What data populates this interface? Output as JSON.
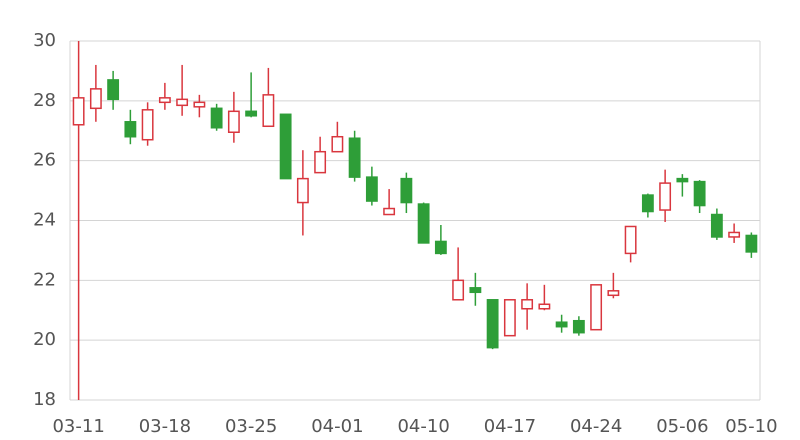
{
  "chart_data": {
    "type": "candlestick",
    "categories": [
      "03-11",
      null,
      null,
      null,
      null,
      "03-18",
      null,
      null,
      null,
      null,
      "03-25",
      null,
      null,
      null,
      null,
      "04-01",
      null,
      null,
      null,
      null,
      "04-10",
      null,
      null,
      null,
      null,
      "04-17",
      null,
      null,
      null,
      null,
      "04-24",
      null,
      null,
      null,
      null,
      "05-06",
      null,
      null,
      null,
      "05-10"
    ],
    "open": [
      27.2,
      27.75,
      28.7,
      27.3,
      26.7,
      27.95,
      27.85,
      27.8,
      27.75,
      26.95,
      27.65,
      27.15,
      27.55,
      24.6,
      25.6,
      26.3,
      26.75,
      25.45,
      24.2,
      25.4,
      24.55,
      23.3,
      21.35,
      21.75,
      21.35,
      20.15,
      21.05,
      21.05,
      20.6,
      20.65,
      20.35,
      21.5,
      22.9,
      24.85,
      24.35,
      25.4,
      25.3,
      24.2,
      23.45,
      23.5
    ],
    "high": [
      30,
      29.2,
      29.0,
      27.7,
      27.95,
      28.6,
      29.2,
      28.2,
      27.9,
      28.3,
      28.95,
      29.1,
      27.55,
      26.35,
      26.8,
      27.3,
      27.0,
      25.8,
      25.05,
      25.6,
      24.6,
      23.85,
      23.1,
      22.25,
      21.35,
      21.35,
      21.9,
      21.85,
      20.85,
      20.8,
      21.85,
      22.25,
      23.8,
      24.9,
      25.7,
      25.55,
      25.35,
      24.4,
      23.9,
      23.6
    ],
    "low": [
      18,
      27.3,
      27.7,
      26.55,
      26.5,
      27.7,
      27.5,
      27.45,
      27.0,
      26.6,
      27.45,
      27.15,
      25.4,
      23.5,
      25.6,
      26.3,
      25.3,
      24.5,
      24.2,
      24.25,
      23.25,
      22.85,
      21.35,
      21.15,
      19.7,
      20.15,
      20.35,
      21.0,
      20.25,
      20.15,
      20.35,
      21.4,
      22.6,
      24.1,
      23.95,
      24.8,
      24.25,
      23.35,
      23.25,
      22.75
    ],
    "close": [
      28.1,
      28.4,
      28.05,
      26.8,
      27.7,
      28.1,
      28.05,
      27.95,
      27.1,
      27.65,
      27.5,
      28.2,
      25.4,
      25.4,
      26.3,
      26.8,
      25.45,
      24.65,
      24.4,
      24.6,
      23.25,
      22.9,
      22.0,
      21.6,
      19.75,
      21.35,
      21.35,
      21.2,
      20.45,
      20.25,
      21.85,
      21.65,
      23.8,
      24.3,
      25.25,
      25.3,
      24.5,
      23.45,
      23.6,
      22.95
    ],
    "up_color": "#d9363e",
    "down_color": "#2e9e38",
    "ylim": [
      18,
      30
    ],
    "yticks": [
      18,
      20,
      22,
      24,
      26,
      28,
      30
    ],
    "grid": true
  }
}
